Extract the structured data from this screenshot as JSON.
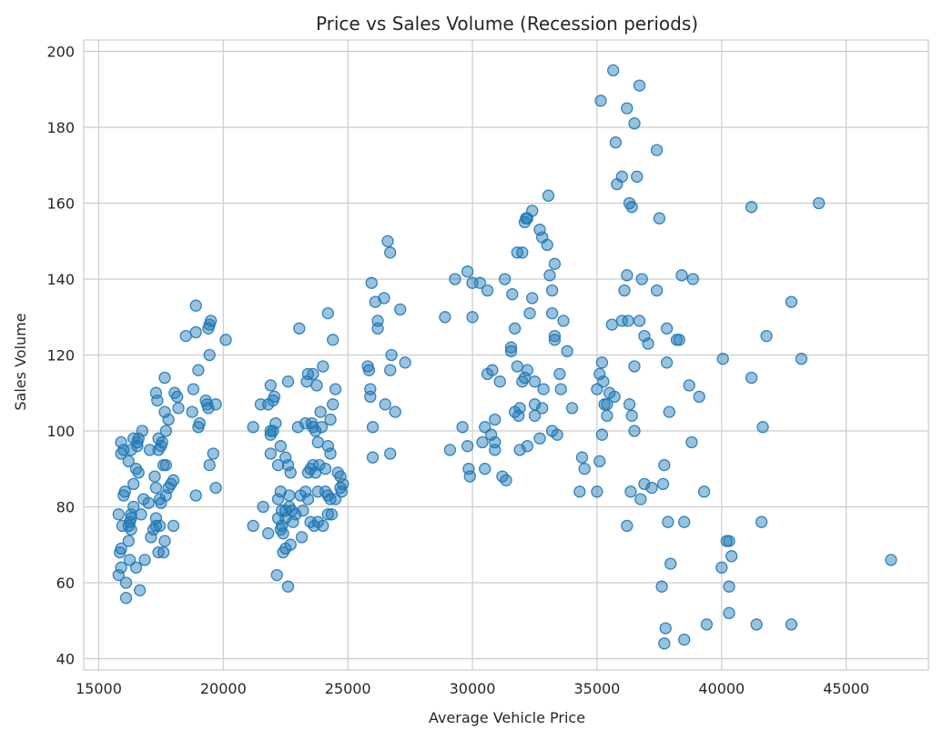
{
  "chart_data": {
    "type": "scatter",
    "title": "Price vs Sales Volume (Recession periods)",
    "xlabel": "Average Vehicle Price",
    "ylabel": "Sales Volume",
    "xlim": [
      14400,
      48300
    ],
    "ylim": [
      37,
      203
    ],
    "xticks": [
      15000,
      20000,
      25000,
      30000,
      35000,
      40000,
      45000
    ],
    "yticks": [
      40,
      60,
      80,
      100,
      120,
      140,
      160,
      180,
      200
    ],
    "grid": true,
    "marker_color": "#1f77b4",
    "points": [
      [
        15800,
        62
      ],
      [
        15850,
        68
      ],
      [
        15900,
        64
      ],
      [
        15900,
        69
      ],
      [
        15950,
        75
      ],
      [
        15800,
        78
      ],
      [
        16000,
        83
      ],
      [
        16050,
        84
      ],
      [
        15900,
        94
      ],
      [
        16000,
        95
      ],
      [
        15900,
        97
      ],
      [
        16100,
        60
      ],
      [
        16100,
        56
      ],
      [
        16250,
        66
      ],
      [
        16300,
        74
      ],
      [
        16200,
        75
      ],
      [
        16250,
        76
      ],
      [
        16300,
        78
      ],
      [
        16400,
        80
      ],
      [
        16500,
        64
      ],
      [
        16400,
        86
      ],
      [
        16500,
        90
      ],
      [
        16600,
        89
      ],
      [
        16300,
        95
      ],
      [
        16550,
        96
      ],
      [
        16550,
        97
      ],
      [
        16400,
        98
      ],
      [
        16600,
        98
      ],
      [
        16750,
        100
      ],
      [
        16200,
        92
      ],
      [
        16200,
        71
      ],
      [
        16300,
        77
      ],
      [
        16650,
        58
      ],
      [
        16700,
        78
      ],
      [
        16800,
        82
      ],
      [
        16850,
        66
      ],
      [
        17000,
        81
      ],
      [
        17050,
        95
      ],
      [
        17100,
        72
      ],
      [
        17200,
        74
      ],
      [
        17300,
        75
      ],
      [
        17300,
        77
      ],
      [
        17250,
        88
      ],
      [
        17300,
        85
      ],
      [
        17450,
        82
      ],
      [
        17500,
        81
      ],
      [
        17400,
        95
      ],
      [
        17500,
        96
      ],
      [
        17550,
        97
      ],
      [
        17400,
        98
      ],
      [
        17350,
        108
      ],
      [
        17300,
        110
      ],
      [
        17450,
        75
      ],
      [
        17400,
        68
      ],
      [
        17600,
        68
      ],
      [
        17600,
        91
      ],
      [
        17700,
        91
      ],
      [
        17650,
        71
      ],
      [
        17700,
        83
      ],
      [
        17800,
        85
      ],
      [
        17900,
        86
      ],
      [
        18000,
        87
      ],
      [
        18000,
        75
      ],
      [
        17650,
        105
      ],
      [
        17700,
        100
      ],
      [
        17800,
        103
      ],
      [
        17650,
        114
      ],
      [
        18050,
        110
      ],
      [
        18150,
        109
      ],
      [
        18200,
        106
      ],
      [
        18500,
        125
      ],
      [
        18750,
        105
      ],
      [
        18800,
        111
      ],
      [
        18900,
        133
      ],
      [
        18900,
        126
      ],
      [
        19000,
        116
      ],
      [
        18900,
        83
      ],
      [
        19000,
        101
      ],
      [
        19050,
        102
      ],
      [
        19300,
        108
      ],
      [
        19350,
        107
      ],
      [
        19400,
        127
      ],
      [
        19400,
        106
      ],
      [
        19450,
        128
      ],
      [
        19500,
        129
      ],
      [
        19450,
        120
      ],
      [
        19450,
        91
      ],
      [
        19600,
        94
      ],
      [
        19700,
        107
      ],
      [
        19700,
        85
      ],
      [
        20100,
        124
      ],
      [
        21200,
        101
      ],
      [
        21200,
        75
      ],
      [
        21500,
        107
      ],
      [
        21600,
        80
      ],
      [
        21800,
        107
      ],
      [
        21800,
        73
      ],
      [
        21900,
        94
      ],
      [
        21900,
        99
      ],
      [
        21900,
        100
      ],
      [
        21900,
        112
      ],
      [
        22000,
        100
      ],
      [
        22000,
        108
      ],
      [
        22050,
        109
      ],
      [
        22100,
        102
      ],
      [
        22150,
        62
      ],
      [
        22200,
        77
      ],
      [
        22200,
        82
      ],
      [
        22200,
        91
      ],
      [
        22300,
        96
      ],
      [
        22300,
        84
      ],
      [
        22300,
        74
      ],
      [
        22350,
        75
      ],
      [
        22350,
        79
      ],
      [
        22400,
        68
      ],
      [
        22400,
        73
      ],
      [
        22500,
        77
      ],
      [
        22500,
        79
      ],
      [
        22500,
        69
      ],
      [
        22500,
        93
      ],
      [
        22600,
        91
      ],
      [
        22700,
        89
      ],
      [
        22650,
        80
      ],
      [
        22750,
        79
      ],
      [
        22650,
        83
      ],
      [
        22700,
        70
      ],
      [
        22800,
        76
      ],
      [
        22900,
        78
      ],
      [
        22600,
        113
      ],
      [
        22600,
        59
      ],
      [
        23000,
        101
      ],
      [
        23100,
        83
      ],
      [
        23050,
        127
      ],
      [
        23150,
        72
      ],
      [
        23200,
        79
      ],
      [
        23300,
        102
      ],
      [
        23350,
        113
      ],
      [
        23400,
        115
      ],
      [
        23300,
        84
      ],
      [
        23400,
        89
      ],
      [
        23400,
        82
      ],
      [
        23500,
        90
      ],
      [
        23550,
        102
      ],
      [
        23600,
        101
      ],
      [
        23600,
        115
      ],
      [
        23500,
        76
      ],
      [
        23600,
        91
      ],
      [
        23700,
        89
      ],
      [
        23650,
        75
      ],
      [
        23700,
        100
      ],
      [
        23750,
        112
      ],
      [
        23800,
        97
      ],
      [
        23800,
        84
      ],
      [
        23800,
        76
      ],
      [
        23850,
        91
      ],
      [
        23900,
        105
      ],
      [
        23950,
        101
      ],
      [
        24000,
        117
      ],
      [
        24000,
        75
      ],
      [
        24100,
        84
      ],
      [
        24200,
        131
      ],
      [
        24200,
        78
      ],
      [
        24100,
        90
      ],
      [
        24200,
        83
      ],
      [
        24300,
        82
      ],
      [
        24200,
        96
      ],
      [
        24300,
        94
      ],
      [
        24300,
        103
      ],
      [
        24400,
        107
      ],
      [
        24350,
        78
      ],
      [
        24400,
        124
      ],
      [
        24500,
        111
      ],
      [
        24500,
        82
      ],
      [
        24600,
        89
      ],
      [
        24700,
        85
      ],
      [
        24700,
        88
      ],
      [
        24750,
        84
      ],
      [
        24800,
        86
      ],
      [
        25800,
        117
      ],
      [
        25850,
        116
      ],
      [
        25900,
        109
      ],
      [
        25900,
        111
      ],
      [
        25950,
        139
      ],
      [
        26000,
        93
      ],
      [
        26000,
        101
      ],
      [
        26100,
        134
      ],
      [
        26200,
        127
      ],
      [
        26200,
        129
      ],
      [
        26450,
        135
      ],
      [
        26500,
        107
      ],
      [
        26600,
        150
      ],
      [
        26700,
        147
      ],
      [
        26700,
        116
      ],
      [
        26750,
        120
      ],
      [
        26700,
        94
      ],
      [
        26900,
        105
      ],
      [
        27100,
        132
      ],
      [
        27300,
        118
      ],
      [
        28900,
        130
      ],
      [
        29100,
        95
      ],
      [
        29300,
        140
      ],
      [
        29600,
        101
      ],
      [
        29800,
        142
      ],
      [
        29850,
        90
      ],
      [
        29800,
        96
      ],
      [
        29900,
        88
      ],
      [
        30000,
        139
      ],
      [
        30000,
        130
      ],
      [
        30300,
        139
      ],
      [
        30400,
        97
      ],
      [
        30500,
        101
      ],
      [
        30500,
        90
      ],
      [
        30600,
        115
      ],
      [
        30600,
        137
      ],
      [
        30750,
        99
      ],
      [
        30800,
        116
      ],
      [
        30900,
        95
      ],
      [
        30900,
        97
      ],
      [
        30900,
        103
      ],
      [
        31100,
        113
      ],
      [
        31200,
        88
      ],
      [
        31300,
        140
      ],
      [
        31350,
        87
      ],
      [
        31550,
        122
      ],
      [
        31550,
        121
      ],
      [
        31600,
        136
      ],
      [
        31700,
        105
      ],
      [
        31700,
        127
      ],
      [
        31800,
        117
      ],
      [
        31800,
        147
      ],
      [
        31900,
        95
      ],
      [
        31850,
        104
      ],
      [
        31900,
        106
      ],
      [
        32000,
        147
      ],
      [
        32000,
        113
      ],
      [
        32100,
        155
      ],
      [
        32100,
        114
      ],
      [
        32150,
        156
      ],
      [
        32200,
        156
      ],
      [
        32200,
        116
      ],
      [
        32200,
        96
      ],
      [
        32300,
        131
      ],
      [
        32400,
        158
      ],
      [
        32400,
        135
      ],
      [
        32500,
        113
      ],
      [
        32500,
        107
      ],
      [
        32500,
        104
      ],
      [
        32700,
        153
      ],
      [
        32700,
        98
      ],
      [
        32800,
        151
      ],
      [
        32800,
        106
      ],
      [
        32850,
        111
      ],
      [
        33000,
        149
      ],
      [
        33050,
        162
      ],
      [
        33100,
        141
      ],
      [
        33200,
        137
      ],
      [
        33200,
        131
      ],
      [
        33200,
        100
      ],
      [
        33300,
        144
      ],
      [
        33300,
        124
      ],
      [
        33300,
        125
      ],
      [
        33400,
        99
      ],
      [
        33500,
        115
      ],
      [
        33550,
        111
      ],
      [
        33650,
        129
      ],
      [
        33800,
        121
      ],
      [
        34000,
        106
      ],
      [
        34300,
        84
      ],
      [
        34400,
        93
      ],
      [
        34500,
        90
      ],
      [
        35000,
        84
      ],
      [
        35000,
        111
      ],
      [
        35100,
        115
      ],
      [
        35100,
        92
      ],
      [
        35150,
        187
      ],
      [
        35200,
        99
      ],
      [
        35200,
        118
      ],
      [
        35250,
        113
      ],
      [
        35300,
        107
      ],
      [
        35400,
        104
      ],
      [
        35400,
        107
      ],
      [
        35500,
        110
      ],
      [
        35600,
        128
      ],
      [
        35650,
        195
      ],
      [
        35700,
        109
      ],
      [
        35750,
        176
      ],
      [
        35800,
        165
      ],
      [
        36000,
        129
      ],
      [
        36000,
        167
      ],
      [
        36100,
        137
      ],
      [
        36200,
        185
      ],
      [
        36200,
        75
      ],
      [
        36200,
        141
      ],
      [
        36250,
        129
      ],
      [
        36300,
        107
      ],
      [
        36300,
        160
      ],
      [
        36400,
        159
      ],
      [
        36350,
        84
      ],
      [
        36400,
        104
      ],
      [
        36500,
        181
      ],
      [
        36500,
        117
      ],
      [
        36500,
        100
      ],
      [
        36600,
        167
      ],
      [
        36700,
        191
      ],
      [
        36700,
        129
      ],
      [
        36750,
        82
      ],
      [
        36800,
        140
      ],
      [
        36900,
        86
      ],
      [
        36900,
        125
      ],
      [
        37050,
        123
      ],
      [
        37200,
        85
      ],
      [
        37400,
        174
      ],
      [
        37400,
        137
      ],
      [
        37500,
        156
      ],
      [
        37600,
        59
      ],
      [
        37650,
        86
      ],
      [
        37700,
        91
      ],
      [
        37700,
        44
      ],
      [
        37750,
        48
      ],
      [
        37800,
        118
      ],
      [
        37800,
        127
      ],
      [
        37850,
        76
      ],
      [
        37900,
        105
      ],
      [
        37950,
        65
      ],
      [
        38200,
        124
      ],
      [
        38300,
        124
      ],
      [
        38400,
        141
      ],
      [
        38500,
        76
      ],
      [
        38500,
        45
      ],
      [
        38700,
        112
      ],
      [
        38800,
        97
      ],
      [
        38850,
        140
      ],
      [
        39100,
        109
      ],
      [
        39300,
        84
      ],
      [
        39400,
        49
      ],
      [
        40000,
        64
      ],
      [
        40050,
        119
      ],
      [
        40200,
        71
      ],
      [
        40300,
        71
      ],
      [
        40300,
        52
      ],
      [
        40300,
        59
      ],
      [
        40400,
        67
      ],
      [
        41200,
        159
      ],
      [
        41200,
        114
      ],
      [
        41400,
        49
      ],
      [
        41600,
        76
      ],
      [
        41650,
        101
      ],
      [
        41800,
        125
      ],
      [
        42800,
        49
      ],
      [
        42800,
        134
      ],
      [
        43200,
        119
      ],
      [
        43900,
        160
      ],
      [
        46800,
        66
      ]
    ]
  }
}
